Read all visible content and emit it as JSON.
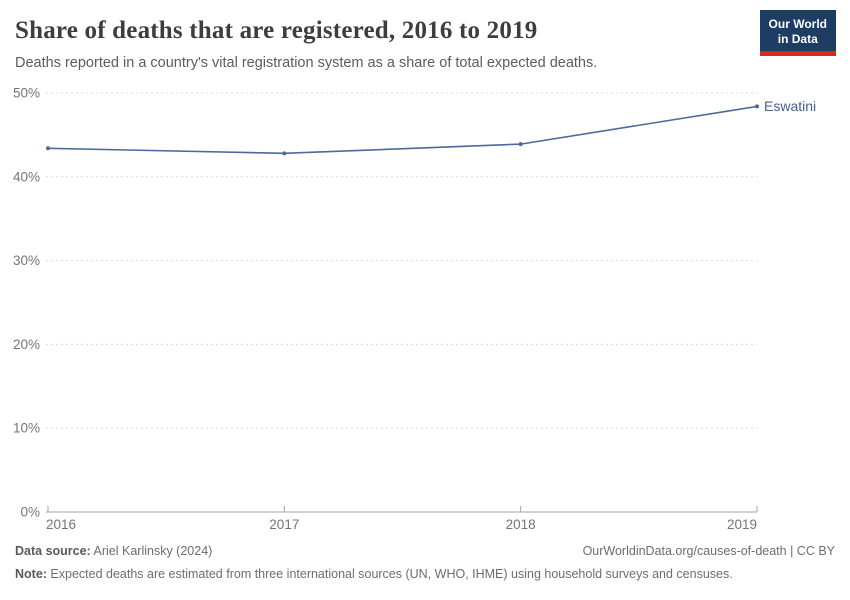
{
  "header": {
    "title": "Share of deaths that are registered, 2016 to 2019",
    "subtitle": "Deaths reported in a country's vital registration system as a share of total expected deaths."
  },
  "logo": {
    "line1": "Our World",
    "line2": "in Data"
  },
  "chart_data": {
    "type": "line",
    "title": "Share of deaths that are registered, 2016 to 2019",
    "subtitle": "Deaths reported in a country's vital registration system as a share of total expected deaths.",
    "x": [
      2016,
      2017,
      2018,
      2019
    ],
    "x_labels": [
      "2016",
      "2017",
      "2018",
      "2019"
    ],
    "series": [
      {
        "name": "Eswatini",
        "values": [
          43.4,
          42.8,
          43.9,
          48.4
        ]
      }
    ],
    "unit": "%",
    "xlabel": "",
    "ylabel": "",
    "ylim": [
      0,
      50
    ],
    "yticks": [
      0,
      10,
      20,
      30,
      40,
      50
    ],
    "ytick_labels": [
      "0%",
      "10%",
      "20%",
      "30%",
      "40%",
      "50%"
    ],
    "grid": "dashed-horizontal",
    "legend_position": "end-of-line-label"
  },
  "colors": {
    "line": "#4c6a9c",
    "entity_label": "#44618f",
    "grid": "#dadada",
    "axis": "#a3a3a3",
    "tick_text": "#757575",
    "logo_bg": "#1d3d63",
    "logo_stripe": "#d42b21"
  },
  "footer": {
    "data_source_label": "Data source:",
    "data_source_value": " Ariel Karlinsky (2024)",
    "attribution": "OurWorldinData.org/causes-of-death | CC BY",
    "note_label": "Note:",
    "note_value": " Expected deaths are estimated from three international sources (UN, WHO, IHME) using household surveys and censuses."
  }
}
